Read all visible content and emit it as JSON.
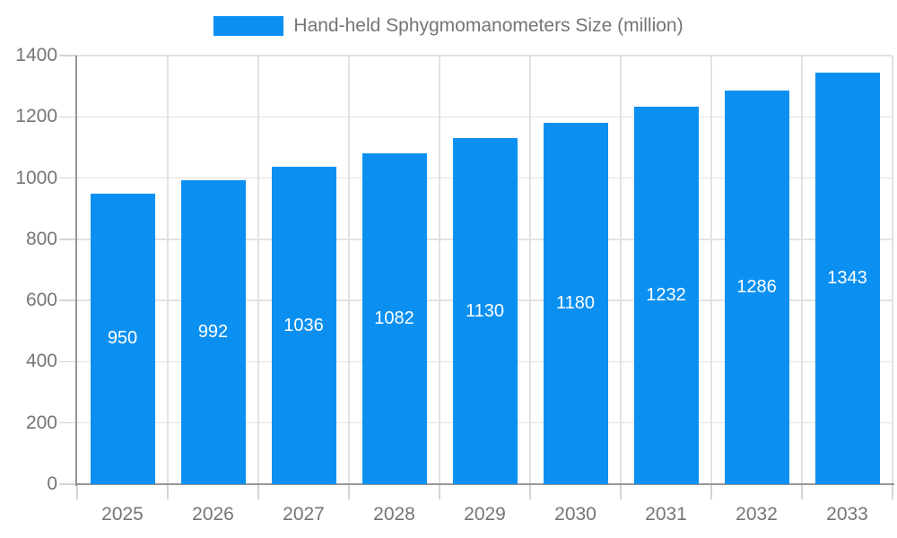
{
  "chart_data": {
    "type": "bar",
    "title": "Hand-held Sphygmomanometers Size (million)",
    "legend": [
      "Hand-held Sphygmomanometers Size (million)"
    ],
    "legend_position": "top-center",
    "categories": [
      "2025",
      "2026",
      "2027",
      "2028",
      "2029",
      "2030",
      "2031",
      "2032",
      "2033"
    ],
    "values": [
      950,
      992,
      1036,
      1082,
      1130,
      1180,
      1232,
      1286,
      1343
    ],
    "xlabel": "",
    "ylabel": "",
    "ylim": [
      0,
      1400
    ],
    "yticks": [
      0,
      200,
      400,
      600,
      800,
      1000,
      1200,
      1400
    ],
    "grid": true,
    "value_labels": "inside-center",
    "colors": {
      "bar": "#0b90f1",
      "value_label": "#ffffff",
      "grid_line": "#e2e2e2",
      "tick_line": "#d4d4d4",
      "axis_line": "#979797",
      "text": "#757575",
      "background": "#ffffff"
    }
  }
}
